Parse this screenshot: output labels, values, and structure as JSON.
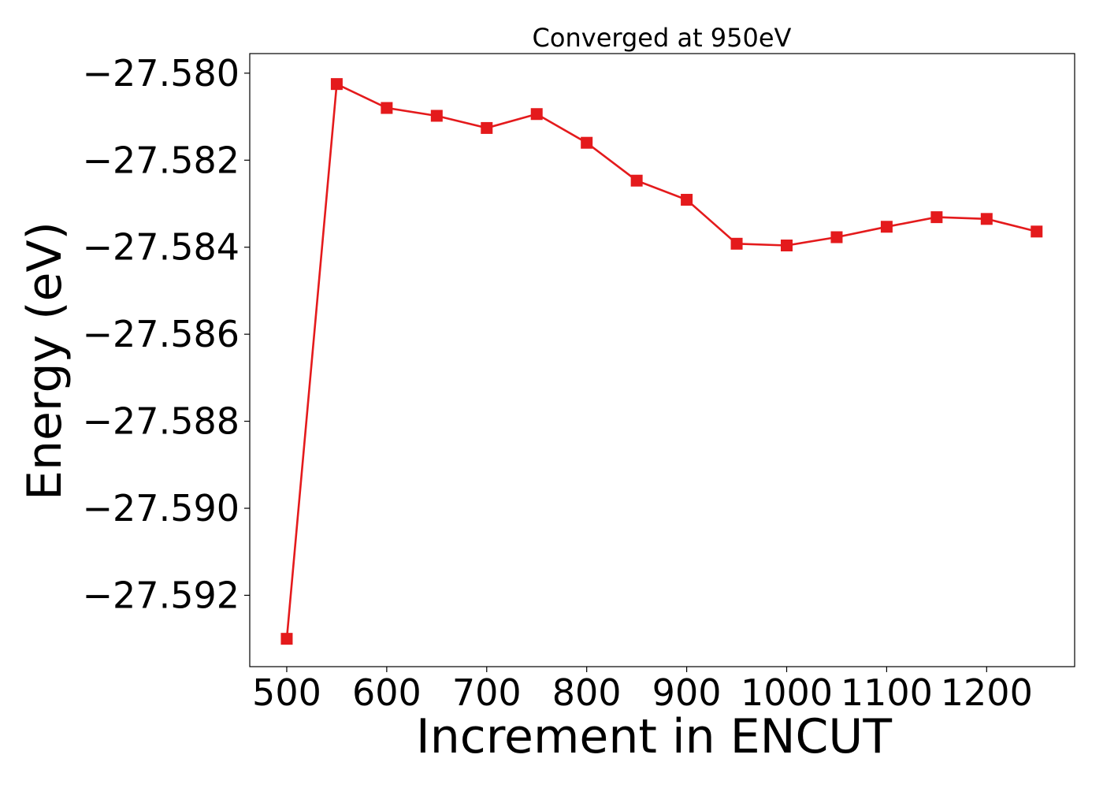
{
  "chart_data": {
    "type": "line",
    "title": "Converged at 950eV",
    "xlabel": "Increment in ENCUT",
    "ylabel": "Energy (eV)",
    "x": [
      500,
      550,
      600,
      650,
      700,
      750,
      800,
      850,
      900,
      950,
      1000,
      1050,
      1100,
      1150,
      1200,
      1250
    ],
    "series": [
      {
        "values": [
          -27.593,
          -27.58025,
          -27.5808,
          -27.58098,
          -27.58126,
          -27.58094,
          -27.5816,
          -27.58247,
          -27.58291,
          -27.58392,
          -27.58396,
          -27.58377,
          -27.58353,
          -27.58331,
          -27.58335,
          -27.58364
        ],
        "color": "#e41a1c",
        "marker": "square"
      }
    ],
    "xticks": [
      500,
      600,
      700,
      800,
      900,
      1000,
      1100,
      1200
    ],
    "xtick_labels": [
      "500",
      "600",
      "700",
      "800",
      "900",
      "1000",
      "1100",
      "1200"
    ],
    "yticks": [
      -27.58,
      -27.582,
      -27.584,
      -27.586,
      -27.588,
      -27.59,
      -27.592
    ],
    "ytick_labels": [
      "−27.580",
      "−27.582",
      "−27.584",
      "−27.586",
      "−27.588",
      "−27.590",
      "−27.592"
    ],
    "xlim": [
      463,
      1288
    ],
    "ylim": [
      -27.59364,
      -27.57955
    ],
    "grid": false,
    "legend": "none"
  }
}
